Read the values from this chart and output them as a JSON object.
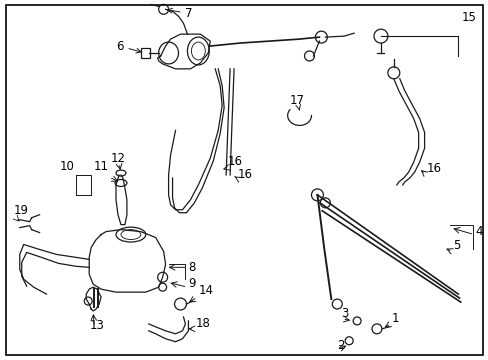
{
  "bg_color": "#ffffff",
  "line_color": "#1a1a1a",
  "border_color": "#000000",
  "fig_width": 4.89,
  "fig_height": 3.6,
  "dpi": 100
}
